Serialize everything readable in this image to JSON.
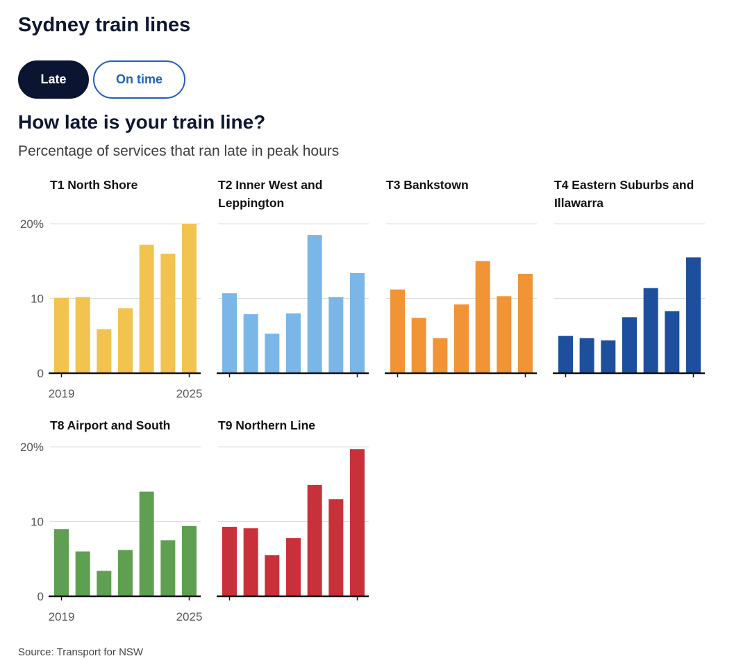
{
  "header": {
    "title": "Sydney train lines"
  },
  "toggle": {
    "late_label": "Late",
    "ontime_label": "On time"
  },
  "chart_heading": "How late is your train line?",
  "chart_subtitle": "Percentage of services that ran late in peak hours",
  "source": "Source: Transport for NSW",
  "chart_data": {
    "type": "bar",
    "layout": "small-multiples",
    "x": [
      2019,
      2020,
      2021,
      2022,
      2023,
      2024,
      2025
    ],
    "x_tick_labels": [
      "2019",
      "2025"
    ],
    "ylim": [
      0,
      20
    ],
    "y_ticks": [
      0,
      10,
      20
    ],
    "y_tick_labels": [
      "0",
      "10",
      "20%"
    ],
    "grid": true,
    "series": [
      {
        "name": "T1 North Shore",
        "color": "#f2c44f",
        "values": [
          10.1,
          10.2,
          5.9,
          8.7,
          17.2,
          16.0,
          20.0
        ]
      },
      {
        "name": "T2 Inner West and Leppington",
        "color": "#7ab7e8",
        "values": [
          10.7,
          7.9,
          5.3,
          8.0,
          18.5,
          10.2,
          13.4
        ]
      },
      {
        "name": "T3 Bankstown",
        "color": "#f09435",
        "values": [
          11.2,
          7.4,
          4.7,
          9.2,
          15.0,
          10.3,
          13.3
        ]
      },
      {
        "name": "T4 Eastern Suburbs and Illawarra",
        "color": "#1e4f9c",
        "values": [
          5.0,
          4.7,
          4.4,
          7.5,
          11.4,
          8.3,
          15.5
        ]
      },
      {
        "name": "T8 Airport and South",
        "color": "#5e9f52",
        "values": [
          9.0,
          6.0,
          3.4,
          6.2,
          14.0,
          7.5,
          9.4
        ]
      },
      {
        "name": "T9 Northern Line",
        "color": "#c9313a",
        "values": [
          9.3,
          9.1,
          5.5,
          7.8,
          14.9,
          13.0,
          19.7
        ]
      }
    ]
  }
}
